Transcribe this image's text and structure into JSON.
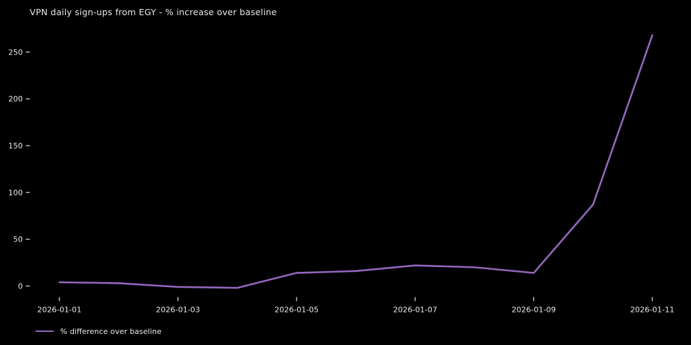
{
  "colors": {
    "background": "#000000",
    "text": "#e8e8e8",
    "line": "#9467bd"
  },
  "chart": {
    "title": "VPN daily sign-ups from EGY - % increase over baseline"
  },
  "chart_data": {
    "type": "line",
    "title": "VPN daily sign-ups from EGY - % increase over baseline",
    "x": [
      "2026-01-01",
      "2026-01-02",
      "2026-01-03",
      "2026-01-04",
      "2026-01-05",
      "2026-01-06",
      "2026-01-07",
      "2026-01-08",
      "2026-01-09",
      "2026-01-10",
      "2026-01-11"
    ],
    "series": [
      {
        "name": "% difference over baseline",
        "color": "#9467bd",
        "values": [
          4,
          3,
          -1,
          -2,
          14,
          16,
          22,
          20,
          14,
          87,
          268
        ]
      }
    ],
    "xlabel": "",
    "ylabel": "",
    "yticks": [
      0,
      50,
      100,
      150,
      200,
      250
    ],
    "xticks": [
      "2026-01-01",
      "2026-01-03",
      "2026-01-05",
      "2026-01-07",
      "2026-01-09",
      "2026-01-11"
    ],
    "ylim": [
      -15,
      275
    ],
    "grid": false,
    "legend_position": "bottom-left",
    "background": "black"
  }
}
